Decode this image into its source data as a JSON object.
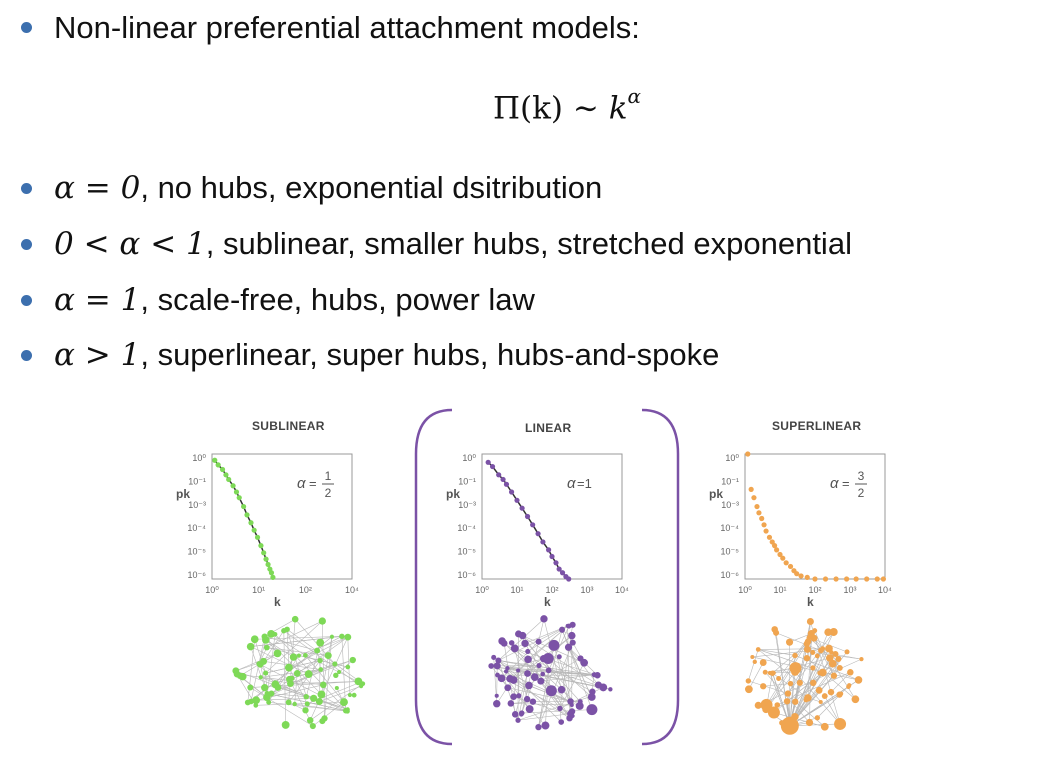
{
  "heading": "Non-linear preferential attachment models:",
  "formula": {
    "lhs": "Π(k)",
    "rel": "∼",
    "base": "k",
    "exp": "α"
  },
  "bullets": [
    {
      "math": "α = 0",
      "text": ", no hubs, exponential dsitribution"
    },
    {
      "math": "0 < α < 1",
      "text": ", sublinear, smaller hubs, stretched exponential"
    },
    {
      "math": "α = 1",
      "text": ", scale-free, hubs, power law"
    },
    {
      "math": "α > 1",
      "text": ", superlinear, super hubs, hubs-and-spoke"
    }
  ],
  "colors": {
    "bullet": "#3c6fae",
    "sublinear": "#7ed957",
    "linear": "#7b52a6",
    "superlinear": "#f0a550"
  },
  "chart_data": [
    {
      "type": "scatter",
      "title": "SUBLINEAR",
      "xlabel": "k",
      "ylabel": "pk",
      "annotation": {
        "symbol": "α",
        "num": "1",
        "den": "2"
      },
      "x_scale": "log",
      "y_scale": "log",
      "xlim": [
        1,
        10000
      ],
      "ylim": [
        1e-06,
        1
      ],
      "x_ticks": [
        "10⁰",
        "10¹",
        "10²",
        "10⁴"
      ],
      "y_ticks": [
        "10⁰",
        "10⁻¹",
        "10⁻³",
        "10⁻⁴",
        "10⁻⁵",
        "10⁻⁶"
      ],
      "series": [
        {
          "x": [
            1.2,
            1.5,
            2,
            2.5,
            3,
            4,
            5,
            6,
            8,
            10,
            13,
            16,
            20,
            25,
            30,
            35,
            40,
            45,
            50,
            55
          ],
          "y": [
            0.5,
            0.3,
            0.18,
            0.1,
            0.06,
            0.03,
            0.015,
            0.008,
            0.003,
            0.0012,
            0.0005,
            0.00022,
            0.0001,
            4e-05,
            1.8e-05,
            9e-06,
            5e-06,
            3e-06,
            2e-06,
            1.2e-06
          ]
        }
      ]
    },
    {
      "type": "scatter",
      "title": "LINEAR",
      "xlabel": "k",
      "ylabel": "pk",
      "annotation": {
        "symbol": "α",
        "text": "=1"
      },
      "x_scale": "log",
      "y_scale": "log",
      "xlim": [
        1,
        10000
      ],
      "ylim": [
        1e-06,
        1
      ],
      "x_ticks": [
        "10⁰",
        "10¹",
        "10²",
        "10³",
        "10⁴"
      ],
      "y_ticks": [
        "10⁰",
        "10⁻¹",
        "10⁻³",
        "10⁻⁴",
        "10⁻⁵",
        "10⁻⁶"
      ],
      "series": [
        {
          "x": [
            1.5,
            2,
            3,
            4,
            5,
            7,
            10,
            14,
            20,
            28,
            40,
            55,
            80,
            100,
            130,
            160,
            200,
            250,
            300
          ],
          "y": [
            0.4,
            0.25,
            0.1,
            0.06,
            0.035,
            0.015,
            0.006,
            0.0025,
            0.001,
            0.0004,
            0.00015,
            6e-05,
            2.5e-05,
            1.2e-05,
            6e-06,
            3e-06,
            2e-06,
            1.3e-06,
            1e-06
          ]
        }
      ]
    },
    {
      "type": "scatter",
      "title": "SUPERLINEAR",
      "xlabel": "k",
      "ylabel": "pk",
      "annotation": {
        "symbol": "α",
        "num": "3",
        "den": "2"
      },
      "x_scale": "log",
      "y_scale": "log",
      "xlim": [
        1,
        10000
      ],
      "ylim": [
        1e-06,
        1
      ],
      "x_ticks": [
        "10⁰",
        "10¹",
        "10²",
        "10³",
        "10⁴"
      ],
      "y_ticks": [
        "10⁰",
        "10⁻¹",
        "10⁻³",
        "10⁻⁴",
        "10⁻⁵",
        "10⁻⁶"
      ],
      "series": [
        {
          "x": [
            1.2,
            1.5,
            1.8,
            2.2,
            2.5,
            3,
            3.5,
            4,
            5,
            6,
            7,
            8,
            10,
            12,
            15,
            20,
            25,
            30,
            40,
            60,
            100,
            200,
            400,
            800,
            1500,
            3000,
            6000,
            9000
          ],
          "y": [
            1,
            0.02,
            0.008,
            0.003,
            0.0015,
            0.0008,
            0.0004,
            0.0002,
            0.0001,
            6e-05,
            4e-05,
            2.5e-05,
            1.5e-05,
            1e-05,
            6e-06,
            4e-06,
            2.5e-06,
            1.8e-06,
            1.4e-06,
            1.2e-06,
            1e-06,
            1e-06,
            1e-06,
            1e-06,
            1e-06,
            1e-06,
            1e-06,
            1e-06
          ]
        }
      ]
    }
  ]
}
